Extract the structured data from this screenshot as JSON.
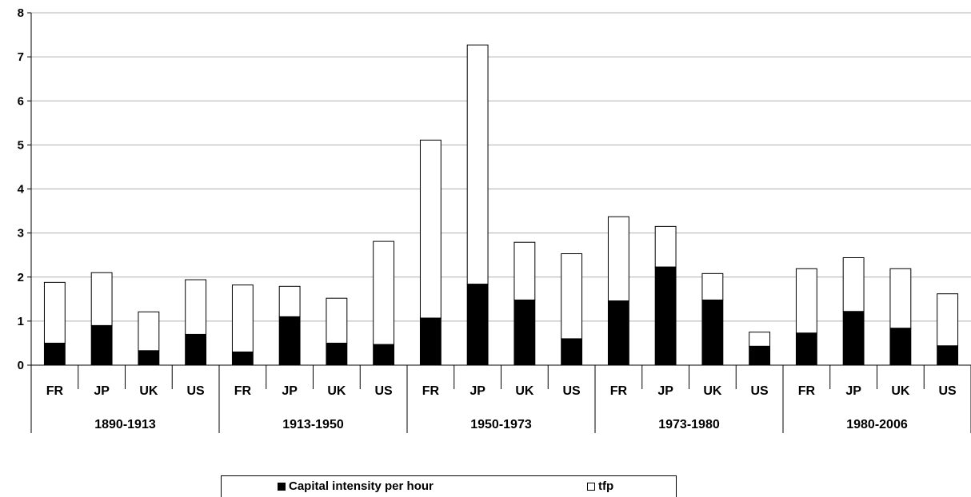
{
  "chart_data": {
    "type": "bar",
    "stacked": true,
    "groups": [
      {
        "label": "1890-1913",
        "categories": [
          "FR",
          "JP",
          "UK",
          "US"
        ]
      },
      {
        "label": "1913-1950",
        "categories": [
          "FR",
          "JP",
          "UK",
          "US"
        ]
      },
      {
        "label": "1950-1973",
        "categories": [
          "FR",
          "JP",
          "UK",
          "US"
        ]
      },
      {
        "label": "1973-1980",
        "categories": [
          "FR",
          "JP",
          "UK",
          "US"
        ]
      },
      {
        "label": "1980-2006",
        "categories": [
          "FR",
          "JP",
          "UK",
          "US"
        ]
      }
    ],
    "series": [
      {
        "name": "Capital intensity per hour",
        "color": "#000000",
        "values": [
          0.5,
          0.9,
          0.33,
          0.7,
          0.3,
          1.1,
          0.5,
          0.47,
          1.07,
          1.84,
          1.48,
          0.6,
          1.46,
          2.23,
          1.48,
          0.43,
          0.73,
          1.22,
          0.84,
          0.44
        ]
      },
      {
        "name": "tfp",
        "color": "#ffffff",
        "values": [
          1.38,
          1.2,
          0.88,
          1.24,
          1.52,
          0.69,
          1.02,
          2.34,
          4.04,
          5.43,
          1.31,
          1.93,
          1.91,
          0.92,
          0.6,
          0.32,
          1.46,
          1.22,
          1.35,
          1.18
        ]
      }
    ],
    "ylim": [
      0,
      8
    ],
    "yticks": [
      0,
      1,
      2,
      3,
      4,
      5,
      6,
      7,
      8
    ],
    "grid": true,
    "legend_position": "bottom"
  }
}
